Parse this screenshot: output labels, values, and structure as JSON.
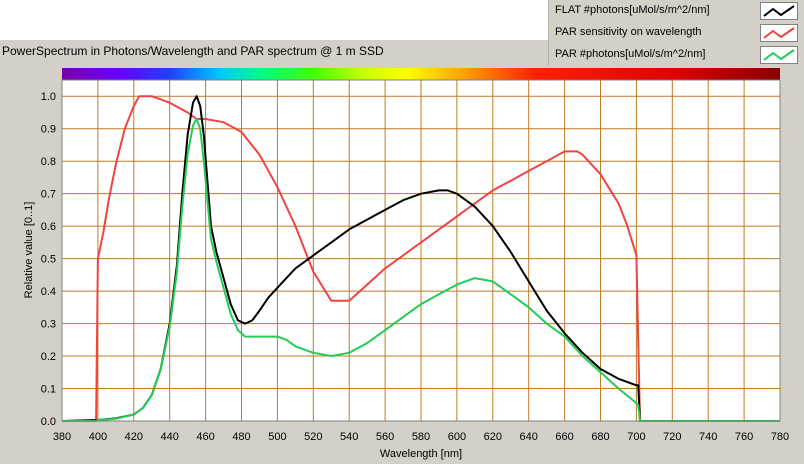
{
  "chart_data": {
    "type": "line",
    "title": "PowerSpectrum in Photons/Wavelength and PAR spectrum @ 1 m SSD",
    "xlabel": "Wavelength [nm]",
    "ylabel": "Relative value [0..1]",
    "xlim": [
      380,
      780
    ],
    "ylim": [
      0,
      1.05
    ],
    "x_ticks": [
      "380",
      "400",
      "420",
      "440",
      "460",
      "480",
      "500",
      "520",
      "540",
      "560",
      "580",
      "600",
      "620",
      "640",
      "660",
      "680",
      "700",
      "720",
      "740",
      "760",
      "780"
    ],
    "y_ticks": [
      "0.0",
      "0.1",
      "0.2",
      "0.3",
      "0.4",
      "0.5",
      "0.6",
      "0.7",
      "0.8",
      "0.9",
      "1.0"
    ],
    "grid": true,
    "legend_position": "top-right",
    "colors": {
      "plot_bg": "#ffffff",
      "grid": "#c07a22",
      "frame_bg": "#d4d0c8"
    },
    "series": [
      {
        "name": "FLAT #photons[uMol/s/m^2/nm]",
        "color": "#000000",
        "points": [
          [
            380,
            0
          ],
          [
            400,
            0.003
          ],
          [
            410,
            0.008
          ],
          [
            420,
            0.02
          ],
          [
            425,
            0.04
          ],
          [
            430,
            0.08
          ],
          [
            435,
            0.16
          ],
          [
            440,
            0.3
          ],
          [
            444,
            0.48
          ],
          [
            447,
            0.7
          ],
          [
            450,
            0.88
          ],
          [
            453,
            0.98
          ],
          [
            455,
            1.0
          ],
          [
            457,
            0.97
          ],
          [
            459,
            0.88
          ],
          [
            461,
            0.74
          ],
          [
            463,
            0.6
          ],
          [
            466,
            0.52
          ],
          [
            470,
            0.44
          ],
          [
            474,
            0.36
          ],
          [
            478,
            0.31
          ],
          [
            482,
            0.3
          ],
          [
            486,
            0.31
          ],
          [
            490,
            0.34
          ],
          [
            495,
            0.38
          ],
          [
            500,
            0.41
          ],
          [
            505,
            0.44
          ],
          [
            510,
            0.47
          ],
          [
            520,
            0.51
          ],
          [
            530,
            0.55
          ],
          [
            540,
            0.59
          ],
          [
            550,
            0.62
          ],
          [
            560,
            0.65
          ],
          [
            570,
            0.68
          ],
          [
            580,
            0.7
          ],
          [
            590,
            0.71
          ],
          [
            595,
            0.71
          ],
          [
            600,
            0.7
          ],
          [
            610,
            0.66
          ],
          [
            620,
            0.6
          ],
          [
            630,
            0.52
          ],
          [
            640,
            0.43
          ],
          [
            650,
            0.34
          ],
          [
            660,
            0.27
          ],
          [
            670,
            0.21
          ],
          [
            680,
            0.16
          ],
          [
            690,
            0.13
          ],
          [
            700,
            0.11
          ],
          [
            701,
            0.11
          ],
          [
            702,
            0
          ],
          [
            780,
            0
          ]
        ]
      },
      {
        "name": "PAR sensitivity on wavelength",
        "color": "#ee4444",
        "points": [
          [
            380,
            0
          ],
          [
            399,
            0
          ],
          [
            400,
            0.5
          ],
          [
            403,
            0.58
          ],
          [
            406,
            0.68
          ],
          [
            410,
            0.79
          ],
          [
            415,
            0.9
          ],
          [
            420,
            0.97
          ],
          [
            423,
            1.0
          ],
          [
            430,
            1.0
          ],
          [
            440,
            0.98
          ],
          [
            450,
            0.95
          ],
          [
            455,
            0.93
          ],
          [
            460,
            0.93
          ],
          [
            470,
            0.92
          ],
          [
            480,
            0.89
          ],
          [
            490,
            0.82
          ],
          [
            500,
            0.72
          ],
          [
            510,
            0.6
          ],
          [
            520,
            0.46
          ],
          [
            530,
            0.37
          ],
          [
            540,
            0.37
          ],
          [
            550,
            0.42
          ],
          [
            560,
            0.47
          ],
          [
            570,
            0.51
          ],
          [
            580,
            0.55
          ],
          [
            590,
            0.59
          ],
          [
            600,
            0.63
          ],
          [
            610,
            0.67
          ],
          [
            620,
            0.71
          ],
          [
            630,
            0.74
          ],
          [
            640,
            0.77
          ],
          [
            650,
            0.8
          ],
          [
            660,
            0.83
          ],
          [
            667,
            0.83
          ],
          [
            670,
            0.82
          ],
          [
            680,
            0.76
          ],
          [
            690,
            0.67
          ],
          [
            695,
            0.6
          ],
          [
            700,
            0.51
          ],
          [
            701,
            0.25
          ],
          [
            702,
            0
          ],
          [
            780,
            0
          ]
        ]
      },
      {
        "name": "PAR #photons[uMol/s/m^2/nm]",
        "color": "#22cc55",
        "points": [
          [
            380,
            0
          ],
          [
            399,
            0
          ],
          [
            400,
            0.003
          ],
          [
            410,
            0.007
          ],
          [
            420,
            0.02
          ],
          [
            425,
            0.04
          ],
          [
            430,
            0.08
          ],
          [
            435,
            0.16
          ],
          [
            440,
            0.29
          ],
          [
            444,
            0.46
          ],
          [
            447,
            0.66
          ],
          [
            450,
            0.82
          ],
          [
            453,
            0.91
          ],
          [
            455,
            0.93
          ],
          [
            457,
            0.9
          ],
          [
            459,
            0.8
          ],
          [
            461,
            0.68
          ],
          [
            463,
            0.56
          ],
          [
            466,
            0.49
          ],
          [
            470,
            0.41
          ],
          [
            474,
            0.33
          ],
          [
            478,
            0.28
          ],
          [
            482,
            0.26
          ],
          [
            490,
            0.26
          ],
          [
            500,
            0.26
          ],
          [
            505,
            0.25
          ],
          [
            510,
            0.23
          ],
          [
            520,
            0.21
          ],
          [
            530,
            0.2
          ],
          [
            540,
            0.21
          ],
          [
            550,
            0.24
          ],
          [
            560,
            0.28
          ],
          [
            570,
            0.32
          ],
          [
            580,
            0.36
          ],
          [
            590,
            0.39
          ],
          [
            600,
            0.42
          ],
          [
            610,
            0.44
          ],
          [
            620,
            0.43
          ],
          [
            630,
            0.39
          ],
          [
            640,
            0.35
          ],
          [
            650,
            0.3
          ],
          [
            660,
            0.26
          ],
          [
            670,
            0.2
          ],
          [
            680,
            0.15
          ],
          [
            690,
            0.1
          ],
          [
            700,
            0.055
          ],
          [
            701,
            0.05
          ],
          [
            702,
            0
          ],
          [
            780,
            0
          ]
        ]
      }
    ]
  }
}
